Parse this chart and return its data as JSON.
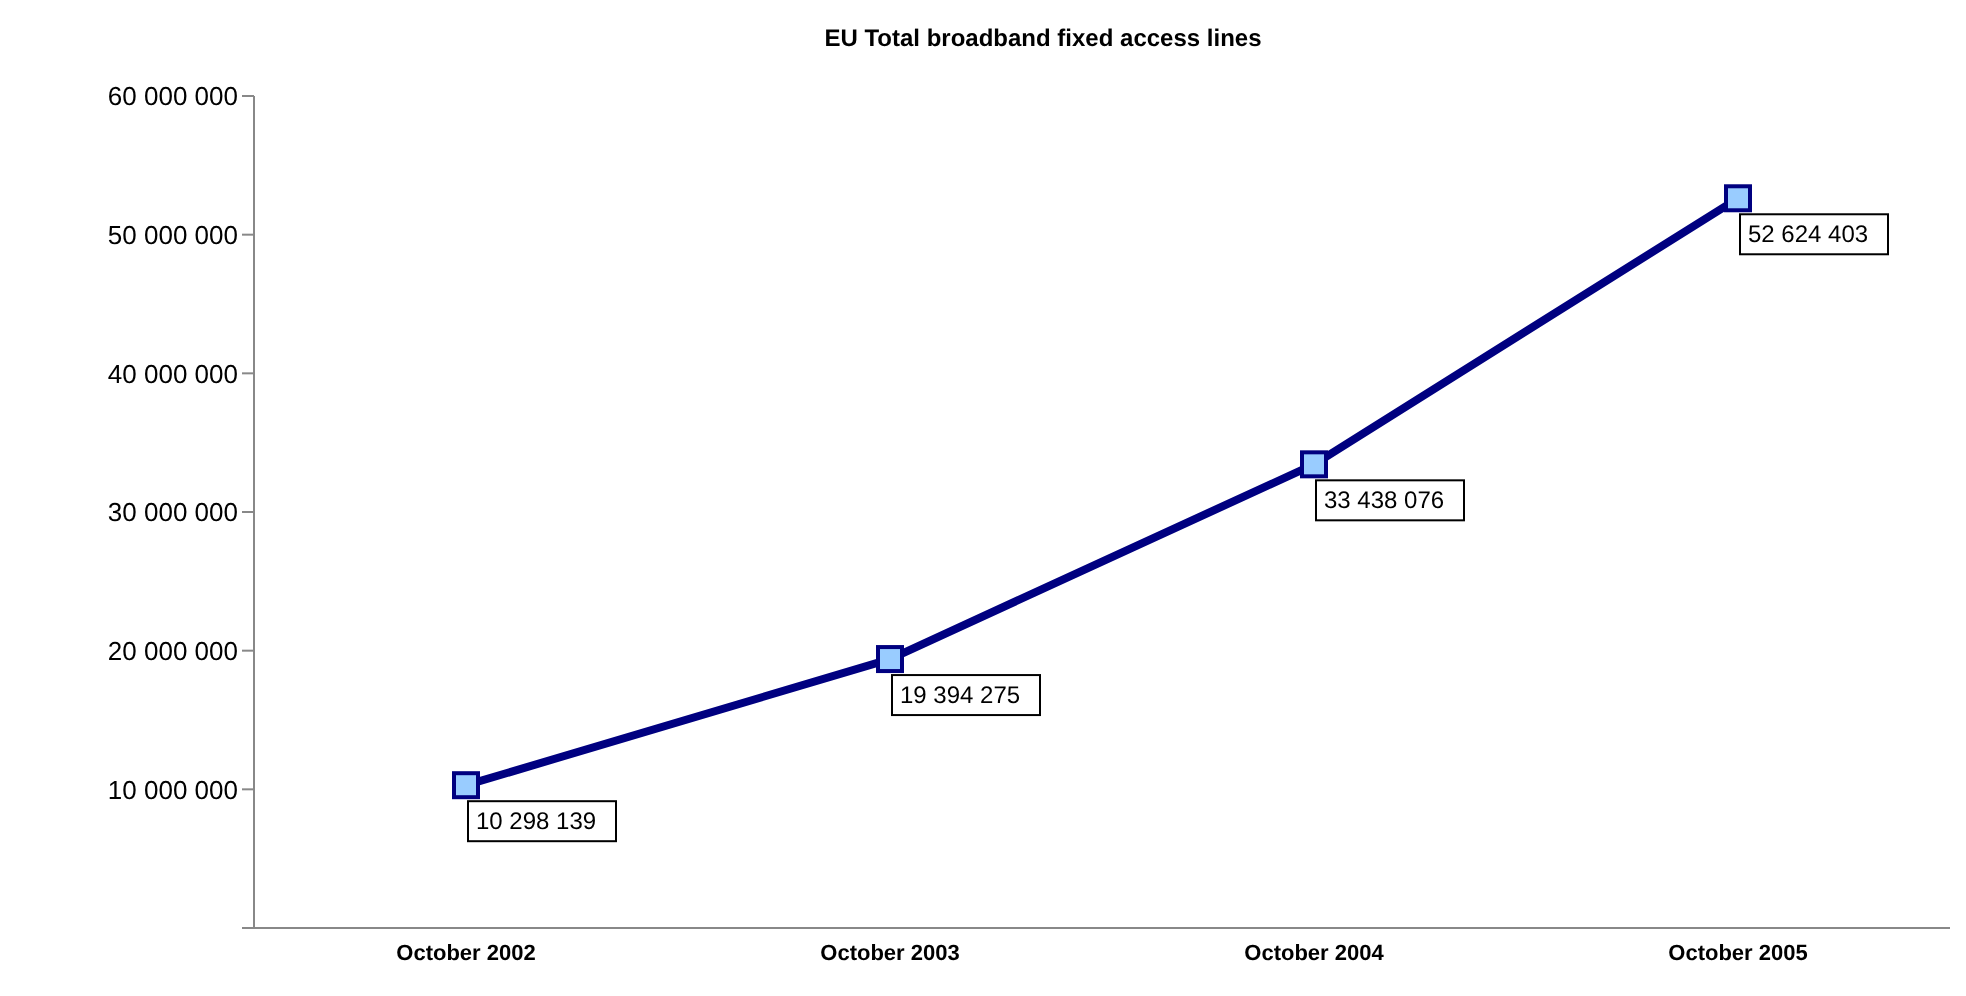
{
  "chart_data": {
    "type": "line",
    "title": "EU Total broadband fixed access lines",
    "categories": [
      "October 2002",
      "October 2003",
      "October 2004",
      "October 2005"
    ],
    "series": [
      {
        "color": "#000080",
        "values": [
          10298139,
          19394275,
          33438076,
          52624403
        ],
        "value_labels": [
          "10 298 139",
          "19 394 275",
          "33 438 076",
          "52 624 403"
        ]
      }
    ],
    "ylim": [
      0,
      60000000
    ],
    "yticks": [
      {
        "value": 0,
        "label": null
      },
      {
        "value": 10000000,
        "label": "10 000 000"
      },
      {
        "value": 20000000,
        "label": "20 000 000"
      },
      {
        "value": 30000000,
        "label": "30 000 000"
      },
      {
        "value": 40000000,
        "label": "40 000 000"
      },
      {
        "value": 50000000,
        "label": "50 000 000"
      },
      {
        "value": 60000000,
        "label": "60 000 000"
      }
    ],
    "grid": false,
    "legend": false,
    "marker": "square",
    "line_style": "solid"
  }
}
